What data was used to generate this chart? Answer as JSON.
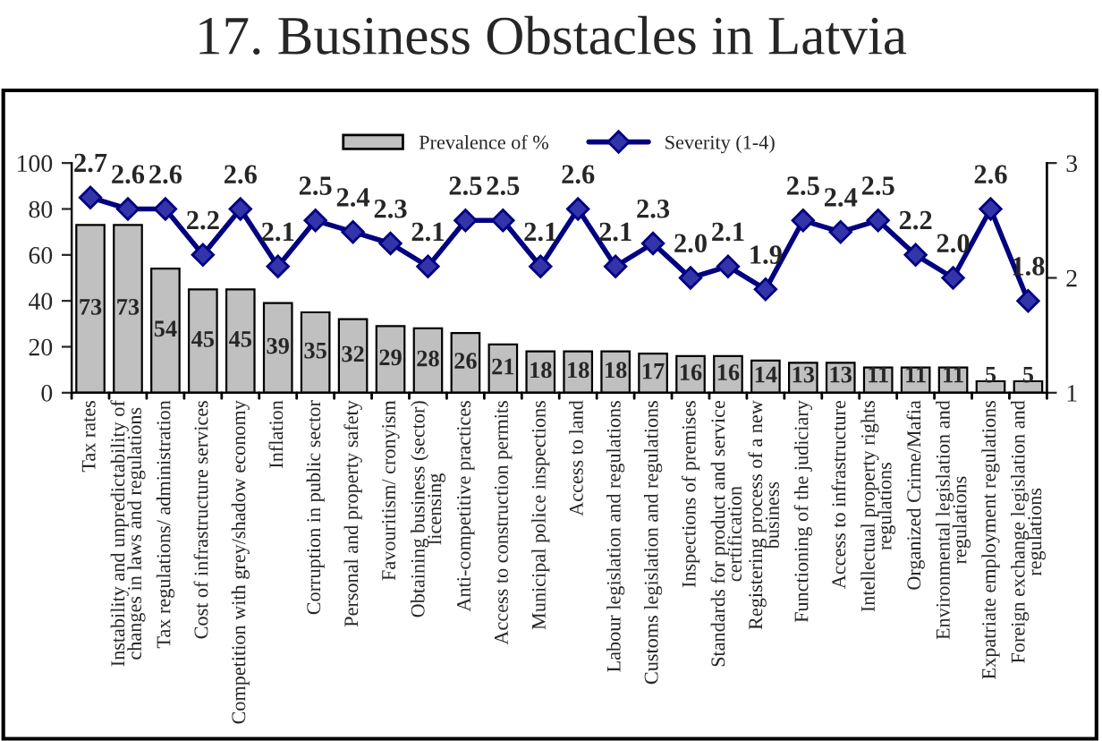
{
  "chart_data": {
    "type": "bar",
    "title": "17. Business Obstacles in Latvia",
    "categories": [
      "Tax rates",
      "Instability and unpredictability of changes in laws and regulations",
      "Tax regulations/ administration",
      "Cost of infrastructure services",
      "Competition with grey/shadow economy",
      "Inflation",
      "Corruption in public sector",
      "Personal and property safety",
      "Favouritism/ cronyism",
      "Obtaining business (sector) licensing",
      "Anti-competitive practices",
      "Access to construction permits",
      "Municipal police inspections",
      "Access to land",
      "Labour legislation and regulations",
      "Customs legislation and regulations",
      "Inspections of premises",
      "Standards for product and service certification",
      "Registering process of a new business",
      "Functioning of the judiciary",
      "Access to infrastructure",
      "Intellectual property rights regulations",
      "Organized Crime/Mafia",
      "Environmental legislation and regulations",
      "Expatriate employment regulations",
      "Foreign exchange legislation and regulations"
    ],
    "series": [
      {
        "name": "Prevalence of %",
        "color": "#c0c0c0",
        "values": [
          73,
          73,
          54,
          45,
          45,
          39,
          35,
          32,
          29,
          28,
          26,
          21,
          18,
          18,
          18,
          17,
          16,
          16,
          14,
          13,
          13,
          11,
          11,
          11,
          5,
          5
        ]
      },
      {
        "name": "Severity (1-4)",
        "type": "line",
        "axis": "y2",
        "color": "#000080",
        "marker": "diamond",
        "values": [
          2.7,
          2.6,
          2.6,
          2.2,
          2.6,
          2.1,
          2.5,
          2.4,
          2.3,
          2.1,
          2.5,
          2.5,
          2.1,
          2.6,
          2.1,
          2.3,
          2.0,
          2.1,
          1.9,
          2.5,
          2.4,
          2.5,
          2.2,
          2.0,
          2.6,
          1.8
        ],
        "value_labels": [
          "2.7",
          "2.6",
          "2.6",
          "2.2",
          "2.6",
          "2.1",
          "2.5",
          "2.4",
          "2.3",
          "2.1",
          "2.5",
          "2.5",
          "2.1",
          "2.6",
          "2.1",
          "2.3",
          "2.0",
          "2.1",
          "1.9",
          "2.5",
          "2.4",
          "2.5",
          "2.2",
          "2.0",
          "2.6",
          "1.8"
        ]
      }
    ],
    "data_labels": true,
    "ylim": [
      0,
      100
    ],
    "yticks": [
      0,
      20,
      40,
      60,
      80,
      100
    ],
    "y2lim": [
      1,
      3
    ],
    "y2ticks": [
      1,
      2,
      3
    ],
    "grid": false,
    "legend": "top"
  }
}
